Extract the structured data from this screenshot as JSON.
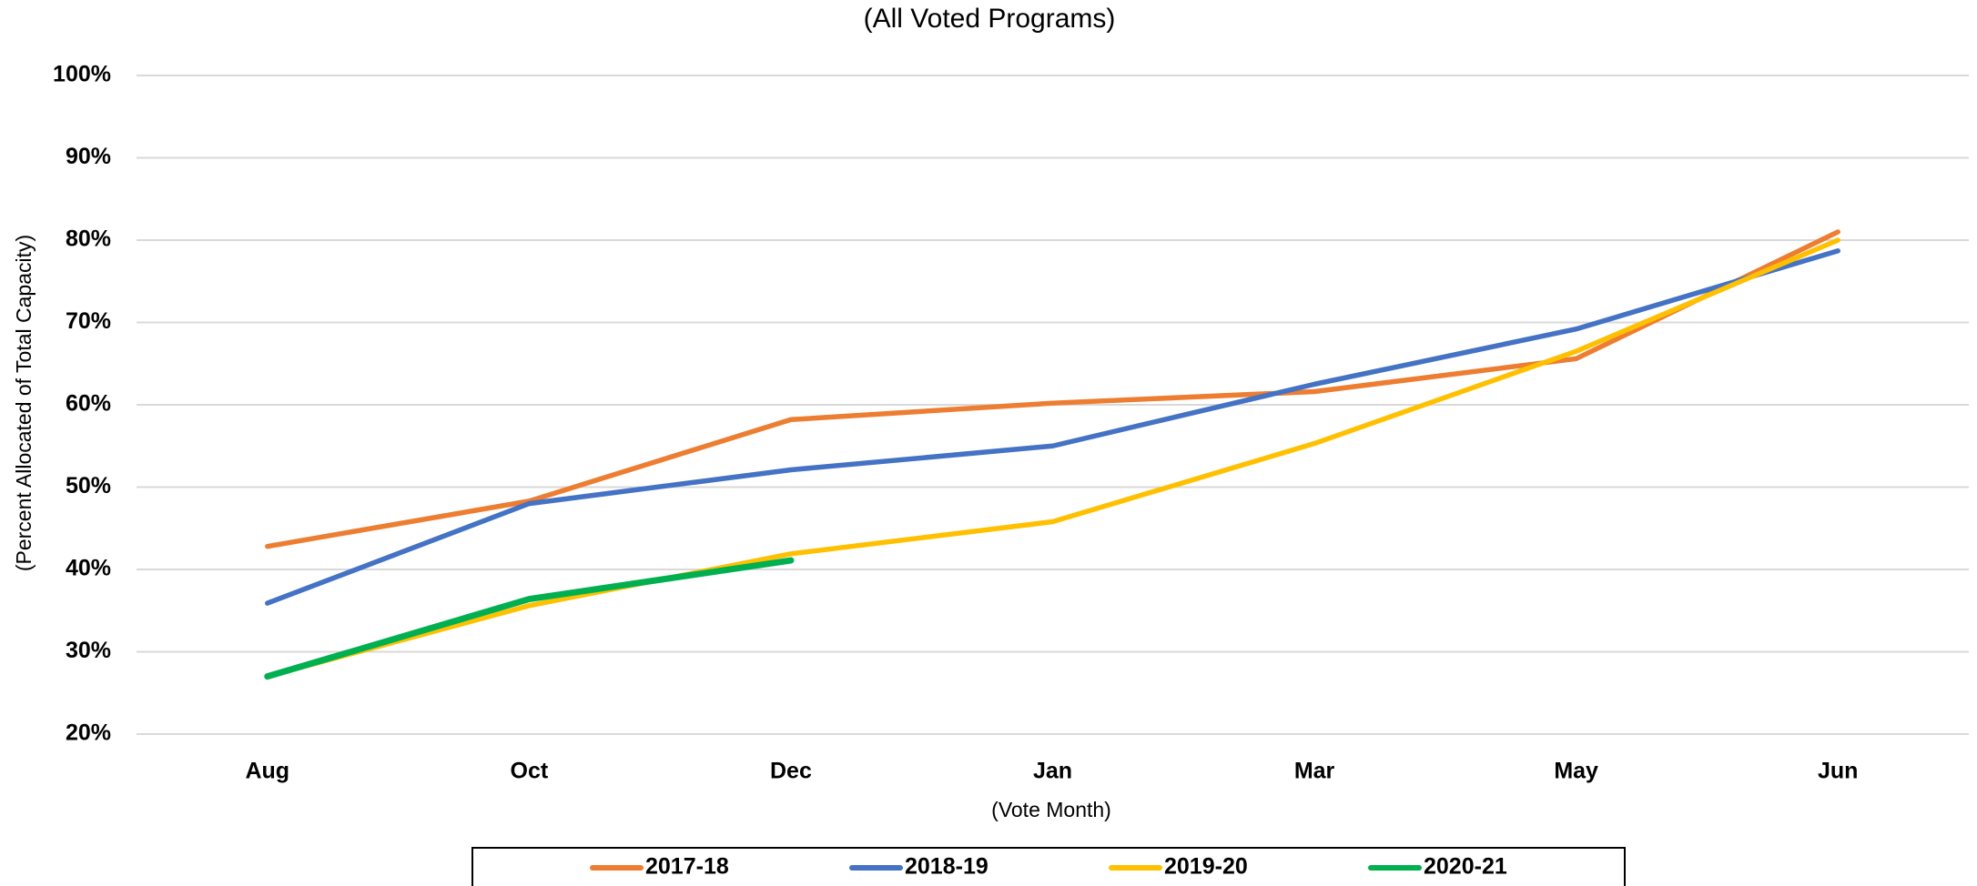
{
  "chart_data": {
    "type": "line",
    "title": "(All Voted Programs)",
    "x_label": "(Vote Month)",
    "y_label": "(Percent Allocated of Total Capacity)",
    "categories": [
      "Aug",
      "Oct",
      "Dec",
      "Jan",
      "Mar",
      "May",
      "Jun"
    ],
    "series": [
      {
        "name": "2017-18",
        "color": "#ed7d31",
        "values": [
          42.8,
          48.3,
          58.2,
          60.2,
          61.6,
          65.6,
          81.0
        ]
      },
      {
        "name": "2018-19",
        "color": "#4472c4",
        "values": [
          35.9,
          48.0,
          52.1,
          55.0,
          62.5,
          69.2,
          78.7
        ]
      },
      {
        "name": "2019-20",
        "color": "#ffc000",
        "values": [
          27.0,
          35.6,
          41.9,
          45.8,
          55.3,
          66.5,
          80.0
        ]
      },
      {
        "name": "2020-21",
        "color": "#00b050",
        "values": [
          27.0,
          36.4,
          41.1,
          null,
          null,
          null,
          null
        ]
      }
    ],
    "ylim": [
      20,
      100
    ],
    "yticks": [
      {
        "value": 20,
        "label": "20%"
      },
      {
        "value": 30,
        "label": "30%"
      },
      {
        "value": 40,
        "label": "40%"
      },
      {
        "value": 50,
        "label": "50%"
      },
      {
        "value": 60,
        "label": "60%"
      },
      {
        "value": 70,
        "label": "70%"
      },
      {
        "value": 80,
        "label": "80%"
      },
      {
        "value": 90,
        "label": "90%"
      },
      {
        "value": 100,
        "label": "100%"
      }
    ],
    "grid": true,
    "legend": "bottom"
  }
}
